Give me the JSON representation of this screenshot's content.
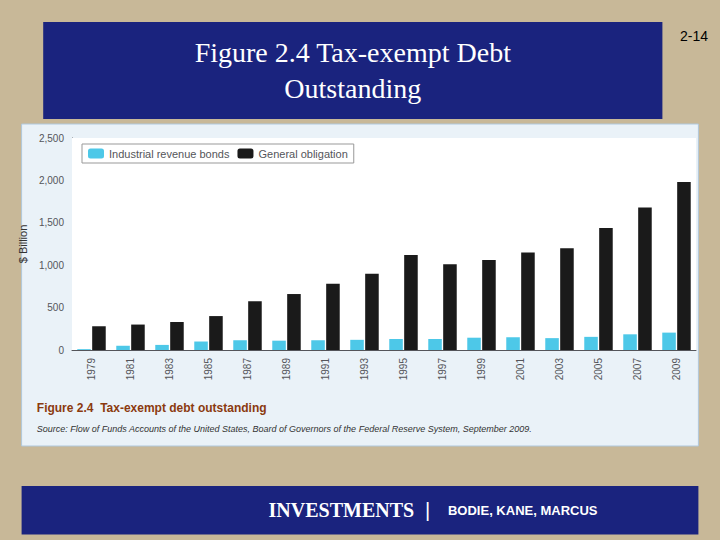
{
  "chart_data": {
    "type": "bar",
    "title": "Figure 2.4 Tax-exempt Debt\nOutstanding",
    "annotations": [
      "2-14",
      "Figure 2.4  Tax-exempt debt outstanding",
      "Source: Flow of Funds Accounts of the United States, Board of Governors of the Federal Reserve System, September 2009.",
      "INVESTMENTS",
      "|",
      "BODIE, KANE, MARCUS"
    ],
    "categories": [
      1979,
      1981,
      1983,
      1985,
      1987,
      1989,
      1991,
      1993,
      1995,
      1997,
      1999,
      2001,
      2003,
      2005,
      2007,
      2009
    ],
    "series": [
      {
        "name": "Industrial revenue bonds",
        "color": "#4dc8e8",
        "values": [
          10,
          50,
          60,
          100,
          115,
          110,
          115,
          120,
          130,
          130,
          145,
          150,
          140,
          155,
          185,
          205
        ]
      },
      {
        "name": "General obligation",
        "color": "#1a1a1a",
        "values": [
          280,
          300,
          330,
          400,
          575,
          660,
          780,
          900,
          1120,
          1010,
          1060,
          1150,
          1200,
          1440,
          1680,
          1980
        ]
      }
    ],
    "ylabel": "$ Billion",
    "ylim": [
      0,
      2500
    ],
    "yticks": [
      0,
      500,
      {
        "value": 1000,
        "label": "1,000"
      },
      {
        "value": 1500,
        "label": "1,500"
      },
      {
        "value": 2000,
        "label": "2,000"
      },
      {
        "value": 2500,
        "label": "2,500"
      }
    ],
    "grid": true,
    "legend": "upper left"
  }
}
